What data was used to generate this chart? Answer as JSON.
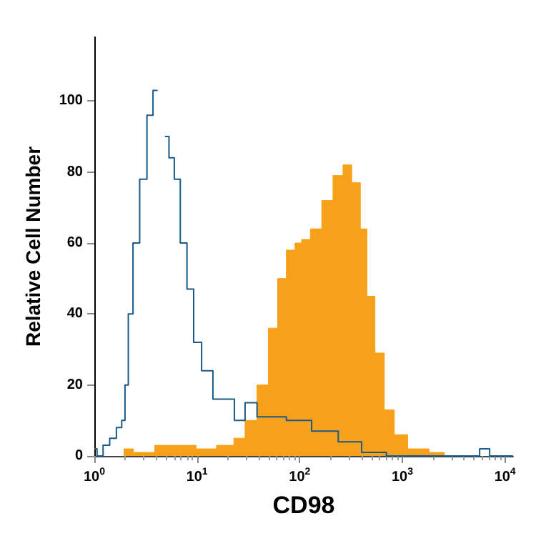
{
  "chart_data": {
    "type": "area",
    "xlabel": "CD98",
    "ylabel": "Relative Cell Number",
    "log": "x",
    "grid": false,
    "xlim": [
      1,
      12000
    ],
    "ylim": [
      0,
      118
    ],
    "xticks": [
      {
        "value": 1,
        "label": "10$^{0}$"
      },
      {
        "value": 10,
        "label": "10$^{1}$"
      },
      {
        "value": 100,
        "label": "10$^{2}$"
      },
      {
        "value": 1000,
        "label": "10$^{3}$"
      },
      {
        "value": 10000,
        "label": "10$^{4}$"
      }
    ],
    "yticks": [
      0,
      20,
      40,
      60,
      80,
      100
    ],
    "series": [
      {
        "color": "#f7a11a",
        "x": [
          1.93,
          3,
          5,
          8,
          12,
          20,
          26.1,
          33.1,
          44.6,
          55,
          67.8,
          81.1,
          100,
          109,
          148,
          182,
          245,
          285,
          362,
          420,
          488,
          601,
          741,
          942,
          1349,
          2455,
          2685
        ],
        "values": [
          2,
          1,
          3,
          3,
          2,
          3,
          5,
          10,
          20,
          36,
          50,
          58,
          60,
          61,
          64,
          72,
          79,
          82,
          77,
          64,
          45,
          29,
          13,
          6,
          2,
          1,
          0
        ]
      },
      {
        "type": "step",
        "color": "#1a5a8a",
        "x": [
          1,
          1.13,
          1.31,
          1.52,
          1.77,
          1.93,
          2.05,
          2.24,
          2.53,
          3.02,
          3.51,
          3.96,
          4.33,
          4.73,
          5.03,
          5.66,
          6.38,
          7.41,
          8.61,
          10,
          12.3,
          16.6,
          20.5,
          26.1,
          33.1,
          44.6,
          55,
          100,
          171,
          330,
          488,
          1000,
          4875,
          6577,
          7640,
          11970
        ],
        "values": [
          2,
          0,
          3,
          5,
          8,
          10,
          20,
          40,
          60,
          78,
          96,
          103,
          null,
          null,
          90,
          84,
          78,
          60,
          47,
          32,
          24,
          16,
          16,
          10,
          15,
          11,
          11,
          10,
          7,
          4,
          1,
          0,
          0,
          2,
          0,
          0
        ]
      }
    ]
  }
}
